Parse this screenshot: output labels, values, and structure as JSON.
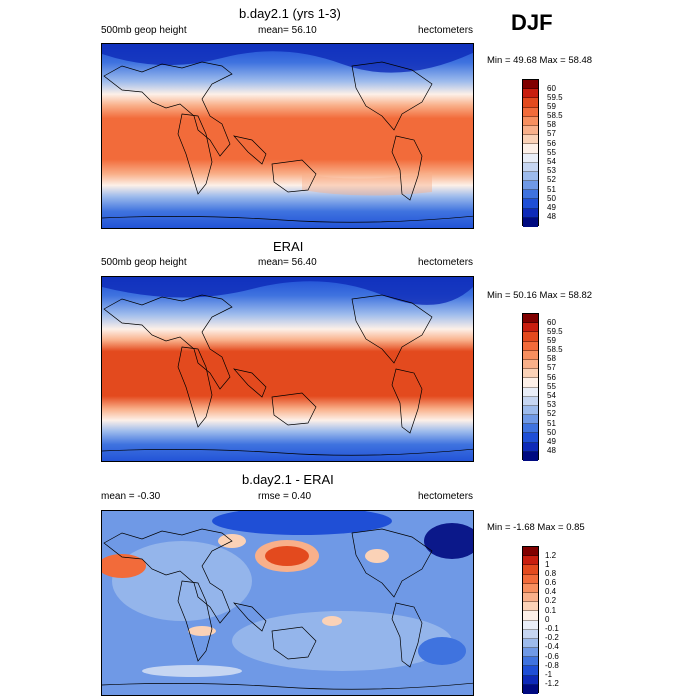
{
  "season": "DJF",
  "panels": [
    {
      "title": "b.day2.1 (yrs 1-3)",
      "left_label": "500mb geop height",
      "center_label": "mean=  56.10",
      "right_label": "hectometers",
      "minmax": "Min =  49.68 Max =  58.48",
      "colorbar_levels": [
        "60",
        "59.5",
        "59",
        "58.5",
        "58",
        "57",
        "56",
        "55",
        "54",
        "53",
        "52",
        "51",
        "50",
        "49",
        "48"
      ]
    },
    {
      "title": "ERAI",
      "left_label": "500mb geop height",
      "center_label": "mean=  56.40",
      "right_label": "hectometers",
      "minmax": "Min =  50.16 Max =  58.82",
      "colorbar_levels": [
        "60",
        "59.5",
        "59",
        "58.5",
        "58",
        "57",
        "56",
        "55",
        "54",
        "53",
        "52",
        "51",
        "50",
        "49",
        "48"
      ]
    },
    {
      "title": "b.day2.1 - ERAI",
      "left_label": "mean =  -0.30",
      "center_label": "rmse =   0.40",
      "right_label": "hectometers",
      "minmax": "Min =  -1.68 Max =   0.85",
      "colorbar_levels": [
        "1.2",
        "1",
        "0.8",
        "0.6",
        "0.4",
        "0.2",
        "0.1",
        "0",
        "-0.1",
        "-0.2",
        "-0.4",
        "-0.6",
        "-0.8",
        "-1",
        "-1.2"
      ]
    }
  ],
  "colors": {
    "colorbar": [
      "#800000",
      "#c81e0f",
      "#e34a1e",
      "#f26b3a",
      "#f78f5f",
      "#f9b08a",
      "#fbd2b7",
      "#fdf0e8",
      "#e9eef8",
      "#c6d6f2",
      "#9dbbec",
      "#6f99e6",
      "#3f73df",
      "#1f4fd6",
      "#0e2ab8",
      "#000a80"
    ],
    "warm_band": "#f07444",
    "cold_band": "#2b5ed9"
  }
}
